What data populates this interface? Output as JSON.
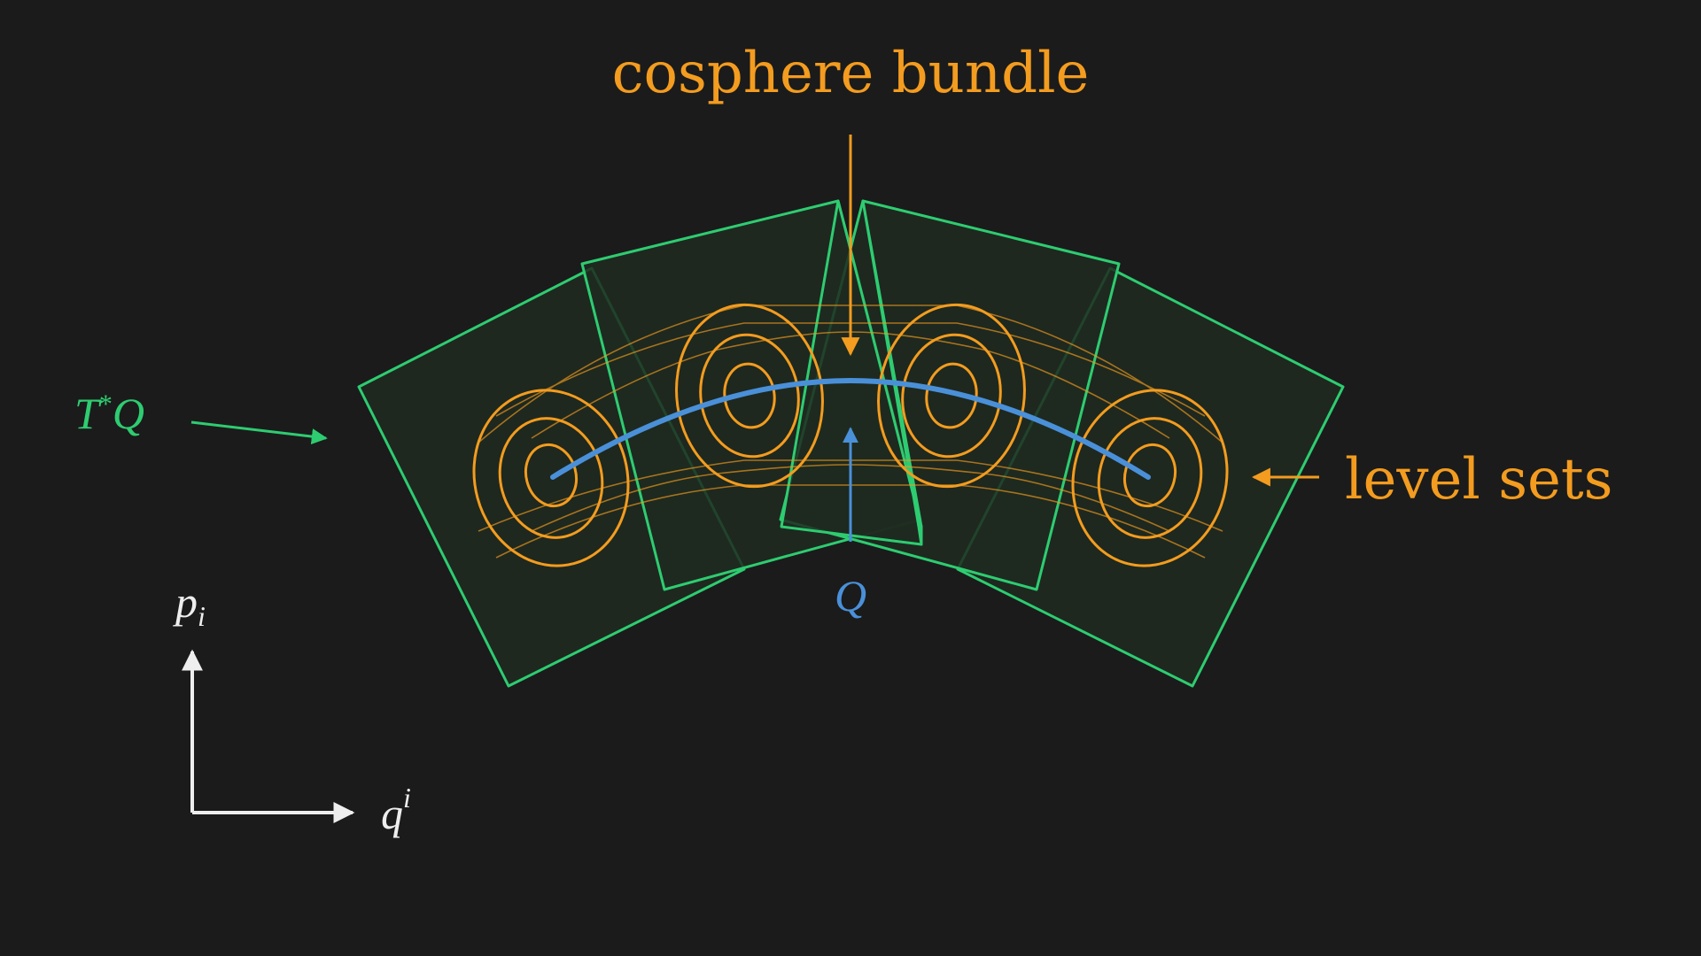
{
  "colors": {
    "background": "#1b1b1b",
    "bundle_green": "#2ecc71",
    "bundle_fill": "#1e2a20",
    "level_orange": "#f39c1f",
    "zero_section_blue": "#4a90d9",
    "axis_white": "#eeeeee"
  },
  "labels": {
    "cosphere_bundle": "cosphere bundle",
    "level_sets": "level sets",
    "cotangent_bundle_T": "T",
    "cotangent_bundle_star": "*",
    "cotangent_bundle_Q": "Q",
    "zero_section": "Q",
    "axis_p": "p",
    "axis_p_index": "i",
    "axis_q": "q",
    "axis_q_index": "i"
  }
}
